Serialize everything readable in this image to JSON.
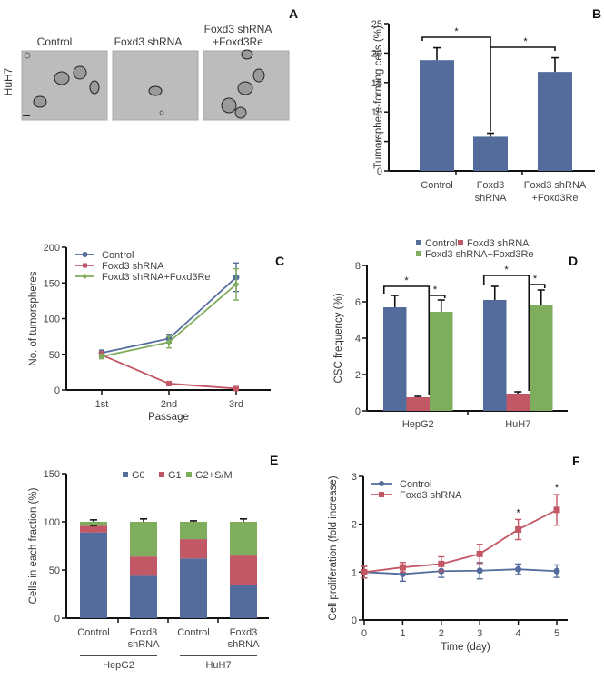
{
  "colors": {
    "blue": "#536c9c",
    "red": "#c25766",
    "green": "#7fad5e"
  },
  "panelA": {
    "letter": "A",
    "row_label": "HuH7",
    "images": [
      {
        "title_lines": [
          "Control"
        ],
        "name": "control"
      },
      {
        "title_lines": [
          "Foxd3 shRNA"
        ],
        "name": "foxd3-shrna"
      },
      {
        "title_lines": [
          "Foxd3 shRNA",
          "+Foxd3Re"
        ],
        "name": "foxd3-shrna-foxd3re"
      }
    ]
  },
  "chart_data": [
    {
      "panel": "B",
      "type": "bar",
      "ylabel": "Tumorsphere-forming cells (%)",
      "xlabel": "",
      "ylim": [
        0,
        25
      ],
      "yticks": [
        0,
        5,
        10,
        15,
        20,
        25
      ],
      "categories": [
        [
          "Control"
        ],
        [
          "Foxd3",
          "shRNA"
        ],
        [
          "Foxd3 shRNA",
          "+Foxd3Re"
        ]
      ],
      "values": [
        18.8,
        5.8,
        16.8
      ],
      "errors": [
        2.1,
        0.6,
        2.4
      ],
      "significance": [
        {
          "from": 0,
          "to": 1,
          "label": "*"
        },
        {
          "from": 1,
          "to": 2,
          "label": "*"
        }
      ],
      "grid": false
    },
    {
      "panel": "C",
      "type": "line",
      "xlabel": "Passage",
      "ylabel": "No. of tumorspheres",
      "ylim": [
        0,
        200
      ],
      "yticks": [
        0,
        50,
        100,
        150,
        200
      ],
      "categories": [
        "1st",
        "2nd",
        "3rd"
      ],
      "series": [
        {
          "name": "Control",
          "color": "blue",
          "marker": "circle",
          "values": [
            52,
            72,
            158
          ],
          "errors": [
            4,
            6,
            20
          ]
        },
        {
          "name": "Foxd3 shRNA",
          "color": "red",
          "marker": "square",
          "values": [
            49,
            9,
            2
          ],
          "errors": [
            5,
            1,
            1
          ]
        },
        {
          "name": "Foxd3 shRNA+Foxd3Re",
          "color": "green",
          "marker": "diamond",
          "values": [
            47,
            67,
            148
          ],
          "errors": [
            3,
            8,
            22
          ]
        }
      ],
      "legend": "top-left",
      "grid": false
    },
    {
      "panel": "D",
      "type": "bar",
      "ylabel": "CSC frequency (%)",
      "xlabel": "",
      "ylim": [
        0,
        8
      ],
      "yticks": [
        0,
        2,
        4,
        6,
        8
      ],
      "categories": [
        "HepG2",
        "HuH7"
      ],
      "series": [
        {
          "name": "Control",
          "color": "blue",
          "values": [
            5.7,
            6.1
          ],
          "errors": [
            0.65,
            0.75
          ]
        },
        {
          "name": "Foxd3 shRNA",
          "color": "red",
          "values": [
            0.75,
            0.95
          ],
          "errors": [
            0.05,
            0.1
          ]
        },
        {
          "name": "Foxd3 shRNA+Foxd3Re",
          "color": "green",
          "values": [
            5.45,
            5.85
          ],
          "errors": [
            0.65,
            0.8
          ]
        }
      ],
      "significance_label": "*",
      "legend": "top",
      "grid": false
    },
    {
      "panel": "E",
      "type": "bar",
      "stacked": true,
      "ylabel": "Cells in each fraction (%)",
      "xlabel": "",
      "ylim": [
        0,
        150
      ],
      "yticks": [
        0,
        50,
        100,
        150
      ],
      "categories": [
        [
          "Control"
        ],
        [
          "Foxd3",
          "shRNA"
        ],
        [
          "Control"
        ],
        [
          "Foxd3",
          "shRNA"
        ]
      ],
      "groups": [
        {
          "label": "HepG2",
          "members": [
            0,
            1
          ]
        },
        {
          "label": "HuH7",
          "members": [
            2,
            3
          ]
        }
      ],
      "series": [
        {
          "name": "G0",
          "color": "blue",
          "values": [
            89,
            44,
            62,
            34
          ],
          "errors": [
            4,
            4,
            5,
            1
          ]
        },
        {
          "name": "G1",
          "color": "red",
          "values": [
            7,
            20,
            20,
            31
          ],
          "errors": [
            0,
            1,
            1,
            1
          ]
        },
        {
          "name": "G2+S/M",
          "color": "green",
          "values": [
            4,
            36,
            18,
            35
          ],
          "errors": [
            2,
            3,
            1,
            3
          ]
        }
      ],
      "legend": "top",
      "grid": false
    },
    {
      "panel": "F",
      "type": "line",
      "xlabel": "Time (day)",
      "ylabel": "Cell proliferation (fold increase)",
      "ylim": [
        0,
        3
      ],
      "xlim": [
        0,
        5
      ],
      "yticks": [
        0,
        1,
        2,
        3
      ],
      "x": [
        0,
        1,
        2,
        3,
        4,
        5
      ],
      "series": [
        {
          "name": "Control",
          "color": "blue",
          "marker": "circle",
          "values": [
            1.0,
            0.96,
            1.02,
            1.03,
            1.06,
            1.02
          ],
          "errors": [
            0.12,
            0.15,
            0.13,
            0.17,
            0.11,
            0.13
          ]
        },
        {
          "name": "Foxd3 shRNA",
          "color": "red",
          "marker": "square",
          "values": [
            1.0,
            1.1,
            1.17,
            1.38,
            1.89,
            2.3
          ],
          "errors": [
            0.12,
            0.1,
            0.15,
            0.2,
            0.21,
            0.32
          ]
        }
      ],
      "annotations": [
        {
          "x": 4,
          "label": "*"
        },
        {
          "x": 5,
          "label": "*"
        }
      ],
      "legend": "top-left",
      "grid": false
    }
  ]
}
